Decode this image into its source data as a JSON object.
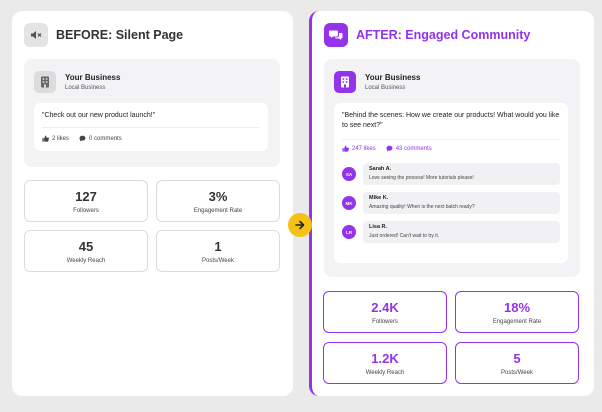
{
  "colors": {
    "accent": "#9333ea",
    "arrow": "#f5c116"
  },
  "before": {
    "title": "BEFORE: Silent Page",
    "icon": "muted-speaker-icon",
    "business": {
      "name": "Your Business",
      "subtitle": "Local Business"
    },
    "post": {
      "text": "\"Check out our new product launch!\"",
      "likes": "2 likes",
      "comments": "0 comments"
    },
    "stats": [
      {
        "value": "127",
        "label": "Followers"
      },
      {
        "value": "3%",
        "label": "Engagement Rate"
      },
      {
        "value": "45",
        "label": "Weekly Reach"
      },
      {
        "value": "1",
        "label": "Posts/Week"
      }
    ]
  },
  "after": {
    "title": "AFTER: Engaged Community",
    "icon": "chat-bubbles-icon",
    "business": {
      "name": "Your Business",
      "subtitle": "Local Business"
    },
    "post": {
      "text": "\"Behind the scenes: How we create our products! What would you like to see next?\"",
      "likes": "247 likes",
      "comments": "43 comments"
    },
    "comments": [
      {
        "initials": "SA",
        "name": "Sarah A.",
        "text": "Love seeing the process! More tutorials please!"
      },
      {
        "initials": "MK",
        "name": "Mike K.",
        "text": "Amazing quality! When is the next batch ready?"
      },
      {
        "initials": "LR",
        "name": "Lisa R.",
        "text": "Just ordered! Can't wait to try it."
      }
    ],
    "stats": [
      {
        "value": "2.4K",
        "label": "Followers"
      },
      {
        "value": "18%",
        "label": "Engagement Rate"
      },
      {
        "value": "1.2K",
        "label": "Weekly Reach"
      },
      {
        "value": "5",
        "label": "Posts/Week"
      }
    ]
  }
}
